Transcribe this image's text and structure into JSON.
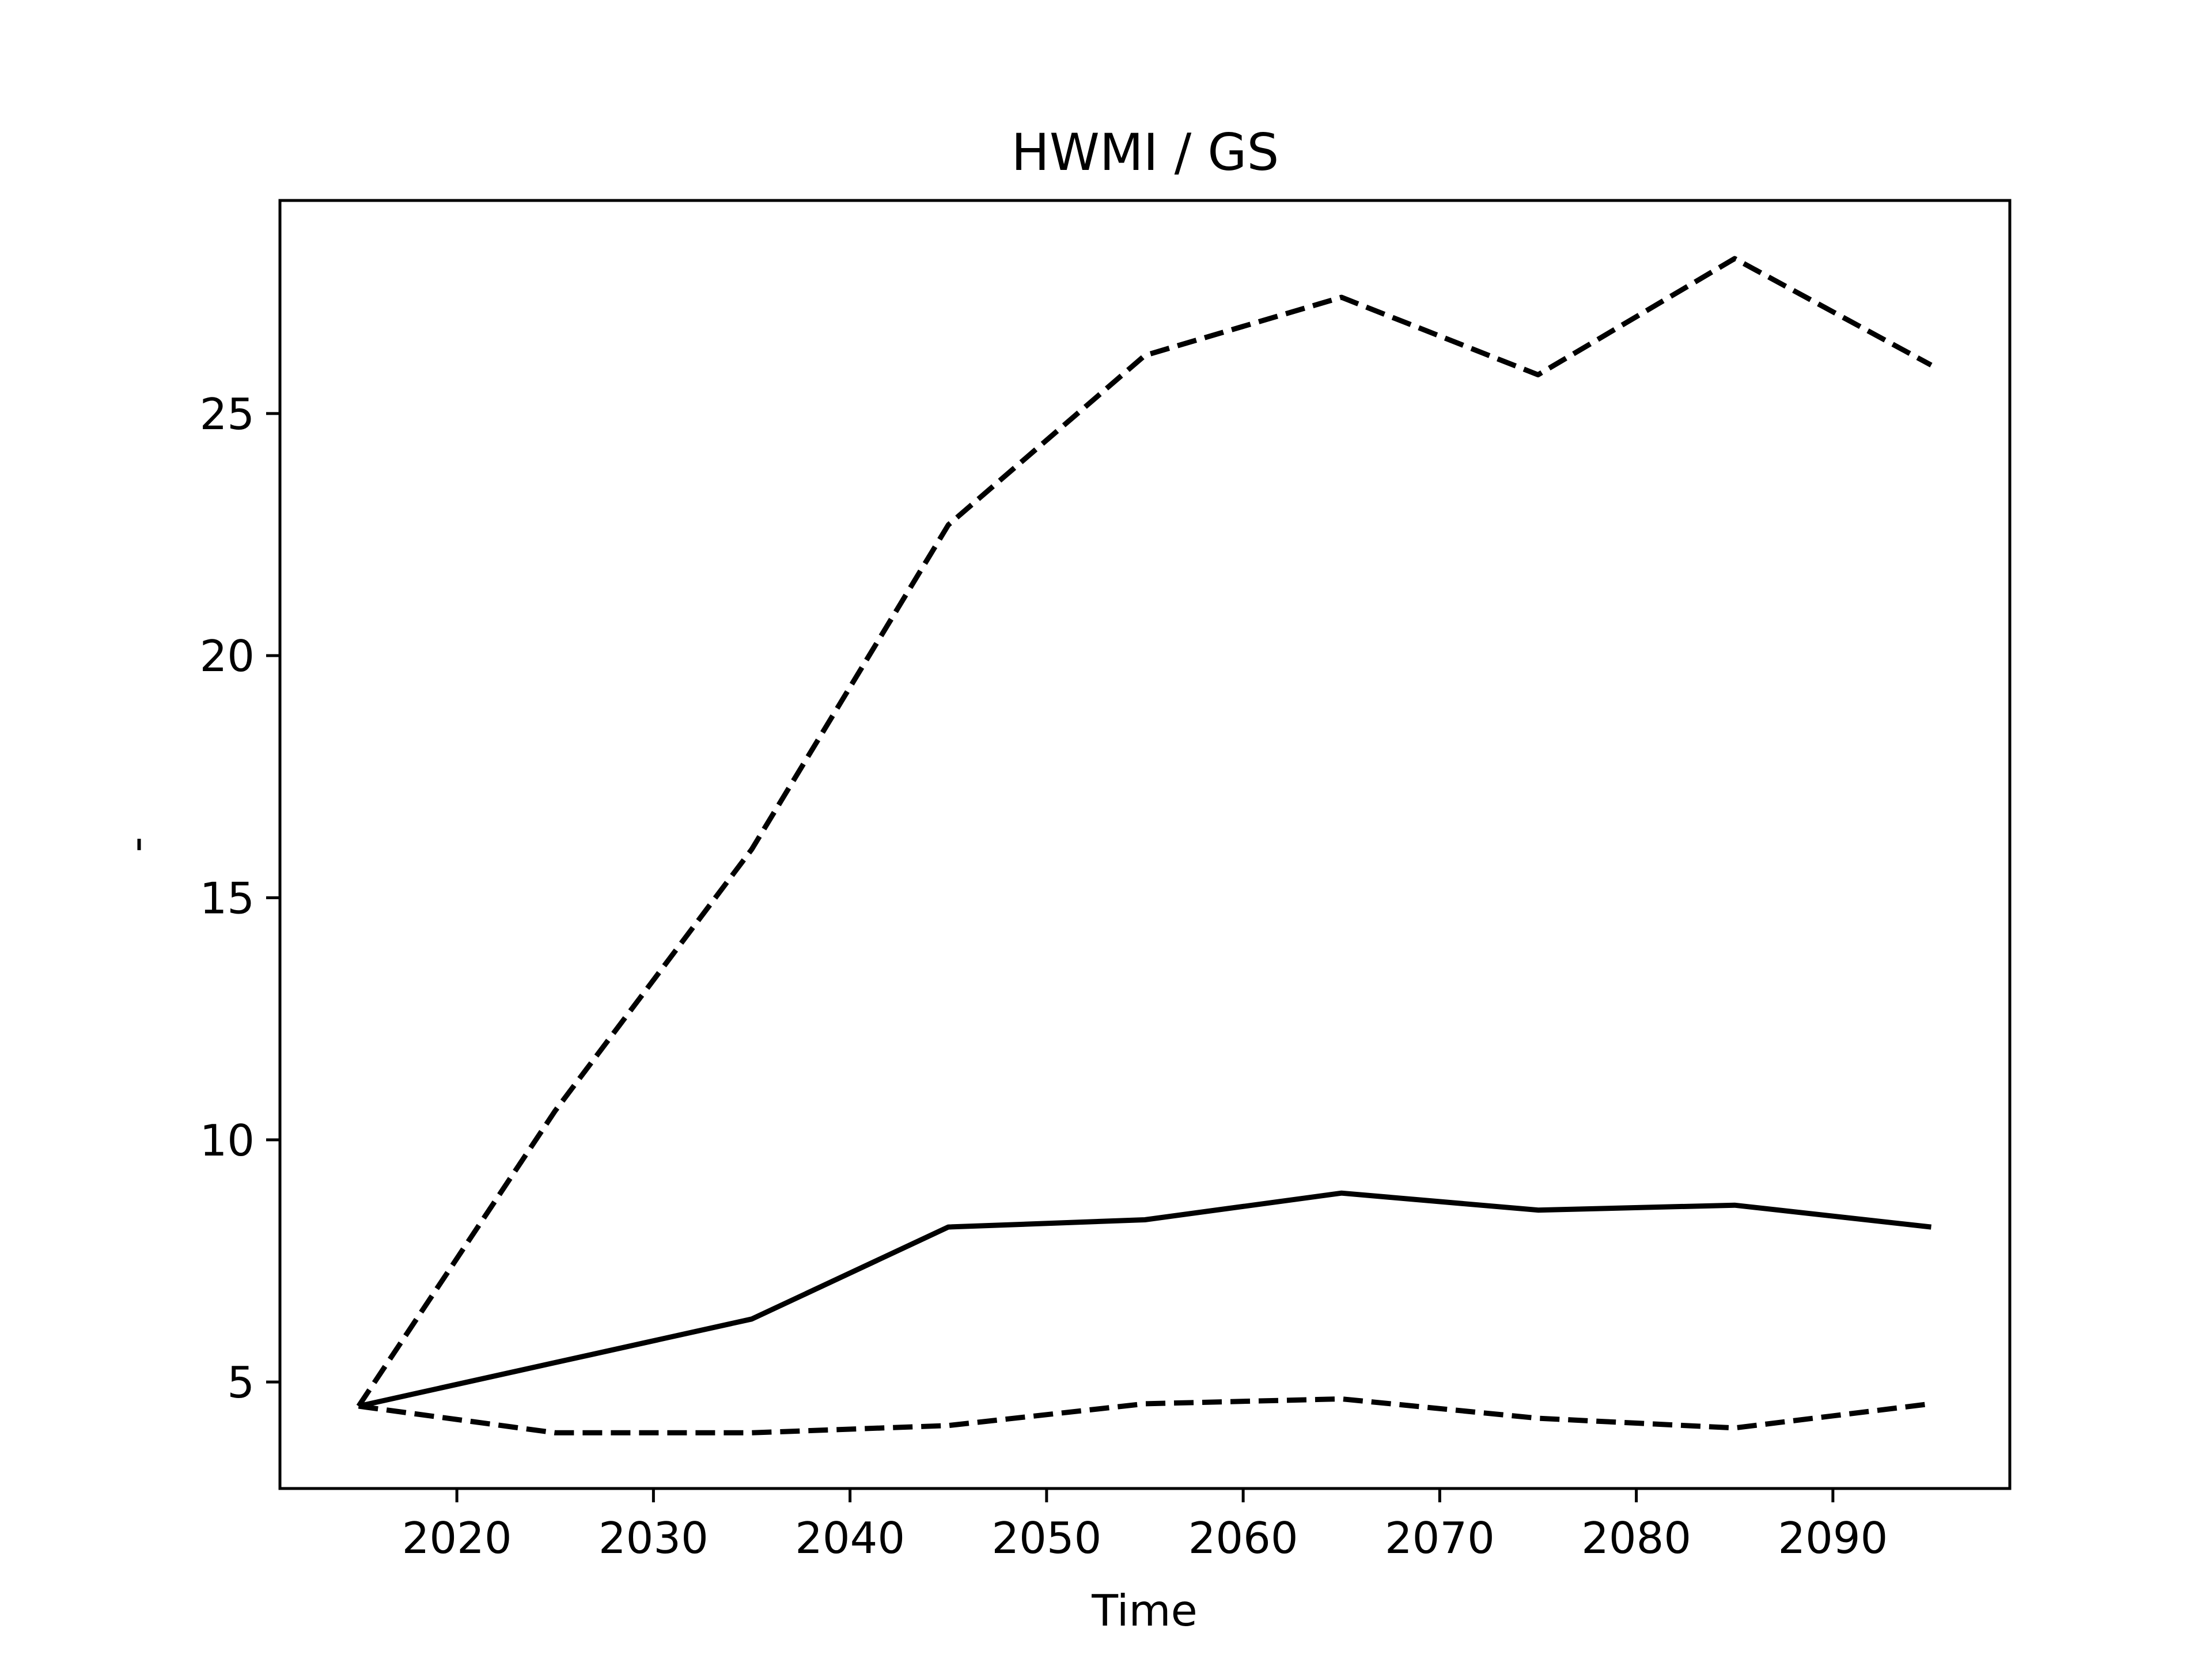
{
  "chart_data": {
    "type": "line",
    "title": "HWMI / GS",
    "xlabel": "Time",
    "ylabel": "-",
    "xlim": [
      2011,
      2099
    ],
    "ylim": [
      2.8,
      29.4
    ],
    "xticks": [
      2020,
      2030,
      2040,
      2050,
      2060,
      2070,
      2080,
      2090
    ],
    "yticks": [
      5,
      10,
      15,
      20,
      25
    ],
    "grid": false,
    "legend": "none",
    "x": [
      2015,
      2025,
      2035,
      2045,
      2055,
      2065,
      2075,
      2085,
      2095
    ],
    "series": [
      {
        "style": "dashed",
        "color": "#000000",
        "values": [
          4.5,
          10.6,
          16.0,
          22.7,
          26.2,
          27.4,
          25.8,
          28.2,
          26.0
        ]
      },
      {
        "style": "solid",
        "color": "#000000",
        "values": [
          4.5,
          5.4,
          6.3,
          8.2,
          8.35,
          8.9,
          8.55,
          8.65,
          8.2
        ]
      },
      {
        "style": "dashed",
        "color": "#000000",
        "values": [
          4.5,
          3.95,
          3.95,
          4.1,
          4.55,
          4.65,
          4.25,
          4.05,
          4.55
        ]
      }
    ]
  }
}
